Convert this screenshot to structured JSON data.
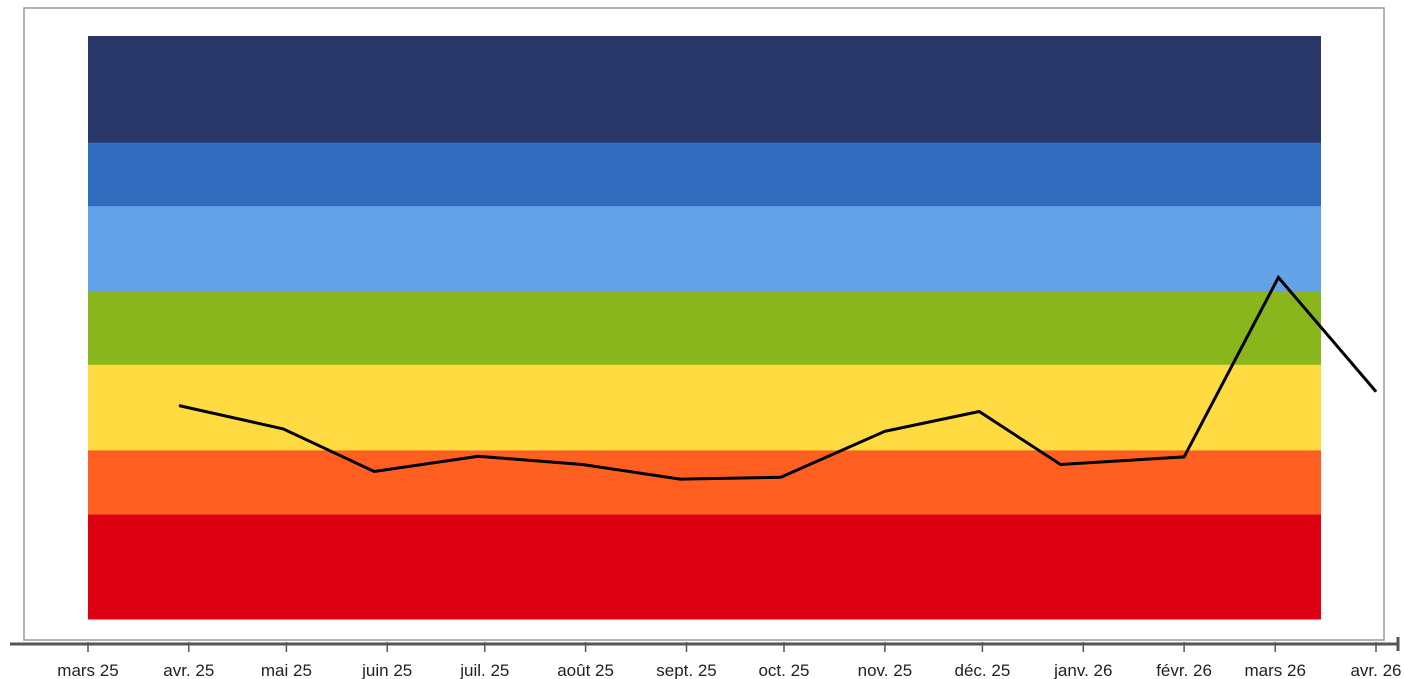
{
  "chart_data": {
    "type": "line",
    "title": "",
    "xlabel": "",
    "ylabel": "",
    "x_tick_labels": [
      "mars 25",
      "avr. 25",
      "mai 25",
      "juin 25",
      "juil. 25",
      "août 25",
      "sept. 25",
      "oct. 25",
      "nov. 25",
      "déc. 25",
      "janv. 26",
      "févr. 26",
      "mars 26",
      "avr. 26"
    ],
    "x_tick_dates": [
      "2025-03-01",
      "2025-04-01",
      "2025-05-01",
      "2025-06-01",
      "2025-07-01",
      "2025-08-01",
      "2025-09-01",
      "2025-10-01",
      "2025-11-01",
      "2025-12-01",
      "2026-01-01",
      "2026-02-01",
      "2026-03-01",
      "2026-04-01"
    ],
    "xlim": [
      "2025-03-01",
      "2026-04-01"
    ],
    "y_axis_shown": false,
    "ylim": [
      0,
      1
    ],
    "grid": false,
    "legend": "none",
    "bands": [
      {
        "from": 0.0,
        "to": 0.18,
        "color": "#dc0012"
      },
      {
        "from": 0.18,
        "to": 0.29,
        "color": "#ff5f20"
      },
      {
        "from": 0.29,
        "to": 0.437,
        "color": "#ffdb41"
      },
      {
        "from": 0.437,
        "to": 0.562,
        "color": "#88b61c"
      },
      {
        "from": 0.562,
        "to": 0.709,
        "color": "#63a2e6"
      },
      {
        "from": 0.709,
        "to": 0.818,
        "color": "#316cbf"
      },
      {
        "from": 0.818,
        "to": 1.0,
        "color": "#283767"
      }
    ],
    "series": [
      {
        "color": "#000000",
        "x": [
          "2025-03-29",
          "2025-04-30",
          "2025-05-28",
          "2025-06-29",
          "2025-07-31",
          "2025-08-30",
          "2025-09-30",
          "2025-11-01",
          "2025-11-30",
          "2025-12-25",
          "2026-02-01",
          "2026-03-02",
          "2026-04-01"
        ],
        "values": [
          0.366,
          0.326,
          0.253,
          0.279,
          0.265,
          0.24,
          0.243,
          0.322,
          0.356,
          0.265,
          0.278,
          0.586,
          0.39
        ]
      }
    ]
  }
}
